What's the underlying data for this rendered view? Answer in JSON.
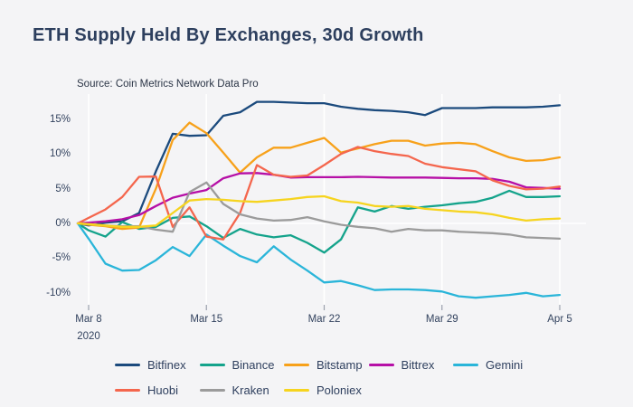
{
  "header": {
    "title": "ETH Supply Held By Exchanges, 30d Growth"
  },
  "chart_data": {
    "type": "line",
    "title": "ETH Supply Held By Exchanges, 30d Growth",
    "source_note": "Source: Coin Metrics Network Data Pro",
    "x_dates": [
      "Mar 7",
      "Mar 8",
      "Mar 9",
      "Mar 10",
      "Mar 11",
      "Mar 12",
      "Mar 13",
      "Mar 14",
      "Mar 15",
      "Mar 16",
      "Mar 17",
      "Mar 18",
      "Mar 19",
      "Mar 20",
      "Mar 21",
      "Mar 22",
      "Mar 23",
      "Mar 24",
      "Mar 25",
      "Mar 26",
      "Mar 27",
      "Mar 28",
      "Mar 29",
      "Mar 30",
      "Mar 31",
      "Apr 1",
      "Apr 2",
      "Apr 3",
      "Apr 4",
      "Apr 5"
    ],
    "x_tick_labels": [
      "Mar 8",
      "Mar 15",
      "Mar 22",
      "Mar 29",
      "Apr 5"
    ],
    "x_tick_sublabel": "2020",
    "y_tick_labels": [
      "15%",
      "10%",
      "5%",
      "0%",
      "-5%",
      "-10%"
    ],
    "y_tick_values": [
      15,
      10,
      5,
      0,
      -5,
      -10
    ],
    "ylim": [
      -11.5,
      18.6
    ],
    "unit": "%",
    "grid": "white vertical weekly gridlines, white horizontal line at 0%",
    "legend_position": "bottom-left, two rows",
    "background_color": "#f4f4f6",
    "text_color": "#2d3f5e",
    "series": [
      {
        "name": "Bitfinex",
        "color": "#1b4a7d",
        "values": [
          0,
          -0.3,
          0.1,
          0.3,
          1.5,
          7.5,
          12.9,
          12.6,
          12.7,
          15.5,
          16.0,
          17.5,
          17.5,
          17.4,
          17.3,
          17.3,
          16.8,
          16.5,
          16.3,
          16.2,
          16.0,
          15.6,
          16.6,
          16.6,
          16.6,
          16.7,
          16.7,
          16.7,
          16.8,
          17.0
        ]
      },
      {
        "name": "Binance",
        "color": "#14a38b",
        "values": [
          0,
          -1.0,
          -1.9,
          0.2,
          -0.8,
          -0.5,
          0.8,
          1.0,
          -0.4,
          -2.1,
          -0.8,
          -1.6,
          -2.0,
          -1.7,
          -2.8,
          -4.2,
          -2.3,
          2.3,
          1.7,
          2.5,
          2.1,
          2.4,
          2.6,
          2.9,
          3.1,
          3.7,
          4.7,
          3.8,
          3.8,
          3.9
        ]
      },
      {
        "name": "Bitstamp",
        "color": "#f7a11a",
        "values": [
          0,
          -0.2,
          -0.4,
          -0.8,
          -0.6,
          5.0,
          12.0,
          14.5,
          13.0,
          10.2,
          7.3,
          9.5,
          10.9,
          10.9,
          11.6,
          12.3,
          10.2,
          10.8,
          11.4,
          11.9,
          11.9,
          11.2,
          11.5,
          11.6,
          11.4,
          10.4,
          9.5,
          9.0,
          9.1,
          9.5
        ]
      },
      {
        "name": "Bittrex",
        "color": "#b60fa6",
        "values": [
          0,
          0.1,
          0.3,
          0.6,
          1.2,
          2.5,
          3.7,
          4.3,
          4.8,
          6.5,
          7.2,
          7.25,
          7.0,
          6.6,
          6.65,
          6.65,
          6.65,
          6.7,
          6.65,
          6.6,
          6.6,
          6.6,
          6.55,
          6.5,
          6.5,
          6.4,
          6.0,
          5.2,
          5.1,
          5.0
        ]
      },
      {
        "name": "Gemini",
        "color": "#2ab5d9",
        "values": [
          0,
          -2.2,
          -5.8,
          -6.8,
          -6.7,
          -5.3,
          -3.4,
          -4.7,
          -1.6,
          -3.2,
          -4.7,
          -5.6,
          -3.3,
          -5.2,
          -6.8,
          -8.5,
          -8.3,
          -8.9,
          -9.6,
          -9.5,
          -9.5,
          -9.6,
          -9.8,
          -10.5,
          -10.7,
          -10.5,
          -10.3,
          -10.0,
          -10.5,
          -10.3
        ]
      },
      {
        "name": "Huobi",
        "color": "#f4664d",
        "values": [
          0,
          0.8,
          2.0,
          3.8,
          6.7,
          6.75,
          -0.5,
          2.3,
          -1.9,
          -2.3,
          1.5,
          8.4,
          7.0,
          6.7,
          6.9,
          8.4,
          10.0,
          11.0,
          10.4,
          10.0,
          9.7,
          8.6,
          8.1,
          7.8,
          7.5,
          6.2,
          5.4,
          4.9,
          5.0,
          5.3
        ]
      },
      {
        "name": "Kraken",
        "color": "#9b9b9b",
        "values": [
          0,
          -0.1,
          -0.3,
          -0.4,
          -0.4,
          -0.9,
          -1.2,
          4.5,
          5.9,
          2.8,
          1.3,
          0.7,
          0.4,
          0.5,
          0.9,
          0.3,
          -0.2,
          -0.5,
          -0.7,
          -1.2,
          -0.8,
          -1.0,
          -1.0,
          -1.2,
          -1.3,
          -1.4,
          -1.6,
          -2.0,
          -2.1,
          -2.2
        ]
      },
      {
        "name": "Poloniex",
        "color": "#f6d41f",
        "values": [
          0,
          -0.1,
          -0.3,
          -0.5,
          -0.5,
          -0.3,
          1.5,
          3.3,
          3.5,
          3.4,
          3.2,
          3.1,
          3.3,
          3.5,
          3.8,
          3.9,
          3.2,
          3.0,
          2.5,
          2.4,
          2.5,
          2.1,
          1.9,
          1.7,
          1.6,
          1.3,
          0.8,
          0.4,
          0.6,
          0.7
        ]
      }
    ]
  }
}
